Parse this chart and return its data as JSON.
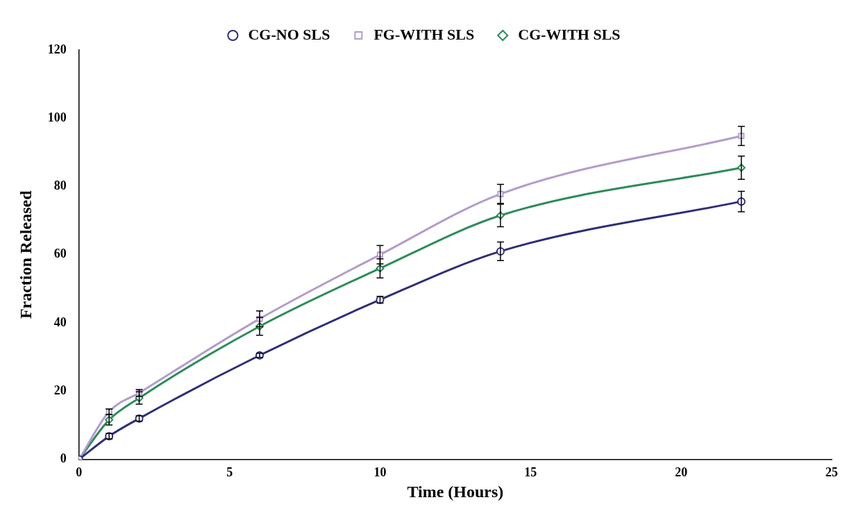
{
  "chart_data": {
    "type": "line",
    "xlabel": "Time (Hours)",
    "ylabel": "Fraction Released",
    "x": [
      0,
      1,
      2,
      6,
      10,
      14,
      22
    ],
    "series": [
      {
        "name": "CG-NO SLS",
        "color": "#2e2e78",
        "marker": "circle",
        "values": [
          0,
          6.8,
          12,
          30.5,
          46.8,
          61,
          75.6
        ],
        "errors": [
          null,
          0.8,
          0.8,
          0.6,
          1,
          2.7,
          3
        ]
      },
      {
        "name": "FG-WITH SLS",
        "color": "#b39ccc",
        "marker": "square",
        "values": [
          0,
          14,
          19.5,
          41.2,
          60,
          77.8,
          94.8
        ],
        "errors": [
          null,
          0.8,
          1,
          2.3,
          2.7,
          2.8,
          2.8
        ]
      },
      {
        "name": "CG-WITH SLS",
        "color": "#2e8b5a",
        "marker": "diamond",
        "values": [
          0,
          11.6,
          18,
          39,
          56,
          71.5,
          85.5
        ],
        "errors": [
          null,
          1.5,
          1.8,
          2.6,
          2.8,
          3.3,
          3.4
        ]
      }
    ],
    "xlim": [
      0,
      25
    ],
    "xticks": [
      0,
      5,
      10,
      15,
      20,
      25
    ],
    "ylim": [
      0,
      120
    ],
    "yticks": [
      0,
      20,
      40,
      60,
      80,
      100,
      120
    ],
    "grid": false,
    "legend": "top",
    "line_style": "solid"
  }
}
